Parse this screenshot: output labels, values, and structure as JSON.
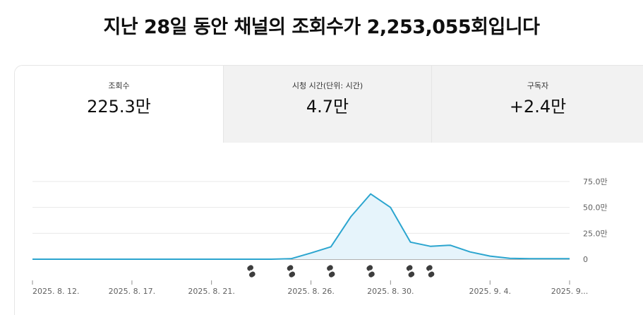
{
  "headline": "지난 28일 동안 채널의 조회수가 2,253,055회입니다",
  "tabs": [
    {
      "label": "조회수",
      "value": "225.3만",
      "selected": true
    },
    {
      "label": "시청 시간(단위: 시간)",
      "value": "4.7만",
      "selected": false
    },
    {
      "label": "구독자",
      "value": "+2.4만",
      "selected": false
    }
  ],
  "colors": {
    "line": "#2ba5cf",
    "fill": "#e6f4fb",
    "short_icon": "#3d3d3d"
  },
  "short_icon_name": "shorts-icon",
  "chart_data": {
    "type": "area",
    "y_tick_labels": [
      "75.0만",
      "50.0만",
      "25.0만",
      "0"
    ],
    "y_ticks": [
      750000,
      500000,
      250000,
      0
    ],
    "ylim": [
      0,
      750000
    ],
    "x_tick_labels": [
      "2025. 8. 12.",
      "2025. 8. 17.",
      "2025. 8. 21.",
      "2025. 8. 26.",
      "2025. 8. 30.",
      "2025. 9. 4.",
      "2025. 9..."
    ],
    "x_tick_dates": [
      "2025-08-12",
      "2025-08-17",
      "2025-08-21",
      "2025-08-26",
      "2025-08-30",
      "2025-09-04",
      "2025-09-08"
    ],
    "x_start": "2025-08-12",
    "x_end": "2025-09-08",
    "series": [
      {
        "dates": [
          "2025-08-12",
          "2025-08-13",
          "2025-08-14",
          "2025-08-15",
          "2025-08-16",
          "2025-08-17",
          "2025-08-18",
          "2025-08-19",
          "2025-08-20",
          "2025-08-21",
          "2025-08-22",
          "2025-08-23",
          "2025-08-24",
          "2025-08-25",
          "2025-08-26",
          "2025-08-27",
          "2025-08-28",
          "2025-08-29",
          "2025-08-30",
          "2025-08-31",
          "2025-09-01",
          "2025-09-02",
          "2025-09-03",
          "2025-09-04",
          "2025-09-05",
          "2025-09-06",
          "2025-09-07",
          "2025-09-08"
        ],
        "values": [
          0,
          0,
          0,
          0,
          0,
          0,
          0,
          0,
          0,
          0,
          0,
          0,
          0,
          5000,
          60000,
          120000,
          410000,
          630000,
          500000,
          165000,
          125000,
          135000,
          70000,
          30000,
          8000,
          5000,
          5000,
          5000
        ]
      }
    ],
    "upload_marker_dates": [
      "2025-08-23",
      "2025-08-25",
      "2025-08-27",
      "2025-08-29",
      "2025-08-31",
      "2025-09-01"
    ]
  }
}
